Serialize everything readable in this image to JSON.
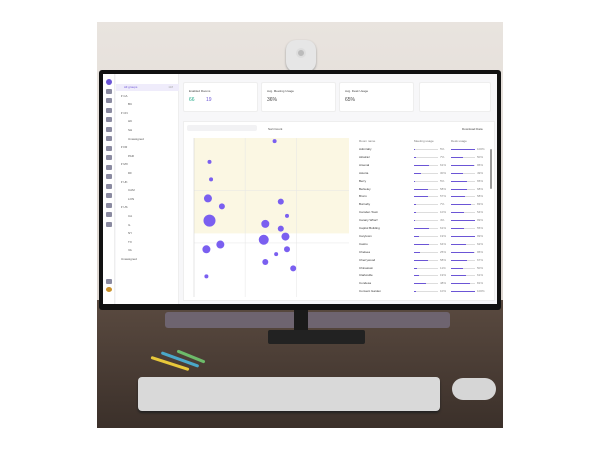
{
  "colors": {
    "accent": "#6b55d6",
    "point": "#7a5ff0",
    "highlight": "#fbf7e3"
  },
  "sidebar": {
    "rail_icons": [
      "logo-icon",
      "building-icon",
      "camera-icon",
      "monitor-icon",
      "cloud-icon",
      "bulb-icon",
      "chart-icon",
      "pin-icon",
      "camera-icon",
      "monitor-icon",
      "cloud-icon",
      "bulb-icon",
      "chart-icon",
      "tablet-icon",
      "camera-icon",
      "cloud-icon",
      "settings-icon",
      "avatar"
    ],
    "tree": [
      {
        "label": "All groups",
        "count": "118",
        "level": 0,
        "selected": true
      },
      {
        "label": "CA",
        "level": 1,
        "expand": true
      },
      {
        "label": "BC",
        "level": 2
      },
      {
        "label": "CN",
        "level": 1,
        "expand": true
      },
      {
        "label": "HK",
        "level": 2
      },
      {
        "label": "SH",
        "level": 2
      },
      {
        "label": "Unassigned",
        "level": 2
      },
      {
        "label": "FR",
        "level": 1,
        "expand": true
      },
      {
        "label": "PAR",
        "level": 2
      },
      {
        "label": "MX",
        "level": 1,
        "expand": true
      },
      {
        "label": "DF",
        "level": 2
      },
      {
        "label": "UK",
        "level": 1,
        "expand": true
      },
      {
        "label": "CAM",
        "level": 2
      },
      {
        "label": "LON",
        "level": 2
      },
      {
        "label": "US",
        "level": 1,
        "expand": true
      },
      {
        "label": "CA",
        "level": 2
      },
      {
        "label": "IL",
        "level": 2
      },
      {
        "label": "NY",
        "level": 2
      },
      {
        "label": "TX",
        "level": 2
      },
      {
        "label": "VA",
        "level": 2
      },
      {
        "label": "Unassigned",
        "level": 1
      }
    ]
  },
  "cards": {
    "enabled_rooms": {
      "title": "Enabled Rooms",
      "a": "66",
      "b": "19"
    },
    "meeting_usage": {
      "title": "Avg. Meeting Usage",
      "value": "36%"
    },
    "desk_usage": {
      "title": "Avg. Desk Usage",
      "value": "65%"
    }
  },
  "main": {
    "sort_label": "Sort:Count",
    "download_label": "Download Data",
    "col_name": "Room name",
    "col_a": "Meeting usage",
    "col_b": "Desk usage"
  },
  "chart_data": {
    "type": "scatter",
    "xlim": [
      0,
      100
    ],
    "ylim": [
      0,
      100
    ],
    "highlight_region": "upper-left",
    "points": [
      {
        "x": 52,
        "y": 98,
        "size": 2
      },
      {
        "x": 10,
        "y": 85,
        "size": 2
      },
      {
        "x": 11,
        "y": 74,
        "size": 2
      },
      {
        "x": 9,
        "y": 62,
        "size": 4
      },
      {
        "x": 18,
        "y": 57,
        "size": 3
      },
      {
        "x": 56,
        "y": 60,
        "size": 3
      },
      {
        "x": 60,
        "y": 51,
        "size": 2
      },
      {
        "x": 10,
        "y": 48,
        "size": 6
      },
      {
        "x": 46,
        "y": 46,
        "size": 4
      },
      {
        "x": 56,
        "y": 43,
        "size": 3
      },
      {
        "x": 45,
        "y": 36,
        "size": 5
      },
      {
        "x": 59,
        "y": 38,
        "size": 4
      },
      {
        "x": 17,
        "y": 33,
        "size": 4
      },
      {
        "x": 8,
        "y": 30,
        "size": 4
      },
      {
        "x": 60,
        "y": 30,
        "size": 3
      },
      {
        "x": 53,
        "y": 27,
        "size": 2
      },
      {
        "x": 46,
        "y": 22,
        "size": 3
      },
      {
        "x": 64,
        "y": 18,
        "size": 3
      },
      {
        "x": 8,
        "y": 13,
        "size": 2
      }
    ]
  },
  "table": [
    {
      "name": "Admiralty",
      "a": "5%",
      "b": "100%",
      "av": 5,
      "bv": 100
    },
    {
      "name": "Alcatraz",
      "a": "7%",
      "b": "50%",
      "av": 7,
      "bv": 50
    },
    {
      "name": "Arsenal",
      "a": "61%",
      "b": "95%",
      "av": 61,
      "bv": 95
    },
    {
      "name": "Astoria",
      "a": "30%",
      "b": "49%",
      "av": 30,
      "bv": 49
    },
    {
      "name": "Berry",
      "a": "5%",
      "b": "65%",
      "av": 5,
      "bv": 65
    },
    {
      "name": "Berkeley",
      "a": "58%",
      "b": "68%",
      "av": 58,
      "bv": 68
    },
    {
      "name": "Bronx",
      "a": "57%",
      "b": "58%",
      "av": 57,
      "bv": 58
    },
    {
      "name": "Burnaby",
      "a": "7%",
      "b": "83%",
      "av": 7,
      "bv": 83
    },
    {
      "name": "Camden Town",
      "a": "10%",
      "b": "54%",
      "av": 10,
      "bv": 54
    },
    {
      "name": "Canary Wharf",
      "a": "4%",
      "b": "99%",
      "av": 4,
      "bv": 99
    },
    {
      "name": "Capitol Building",
      "a": "61%",
      "b": "55%",
      "av": 61,
      "bv": 55
    },
    {
      "name": "Carytown",
      "a": "19%",
      "b": "99%",
      "av": 19,
      "bv": 99
    },
    {
      "name": "Castro",
      "a": "64%",
      "b": "62%",
      "av": 64,
      "bv": 62
    },
    {
      "name": "Chelsea",
      "a": "25%",
      "b": "95%",
      "av": 25,
      "bv": 95
    },
    {
      "name": "Cherrywood",
      "a": "58%",
      "b": "67%",
      "av": 58,
      "bv": 67
    },
    {
      "name": "Chinatown",
      "a": "11%",
      "b": "50%",
      "av": 11,
      "bv": 50
    },
    {
      "name": "Clarksville",
      "a": "19%",
      "b": "61%",
      "av": 19,
      "bv": 61
    },
    {
      "name": "Condesa",
      "a": "48%",
      "b": "81%",
      "av": 48,
      "bv": 81
    },
    {
      "name": "Convent Garden",
      "a": "10%",
      "b": "100%",
      "av": 10,
      "bv": 100
    }
  ]
}
